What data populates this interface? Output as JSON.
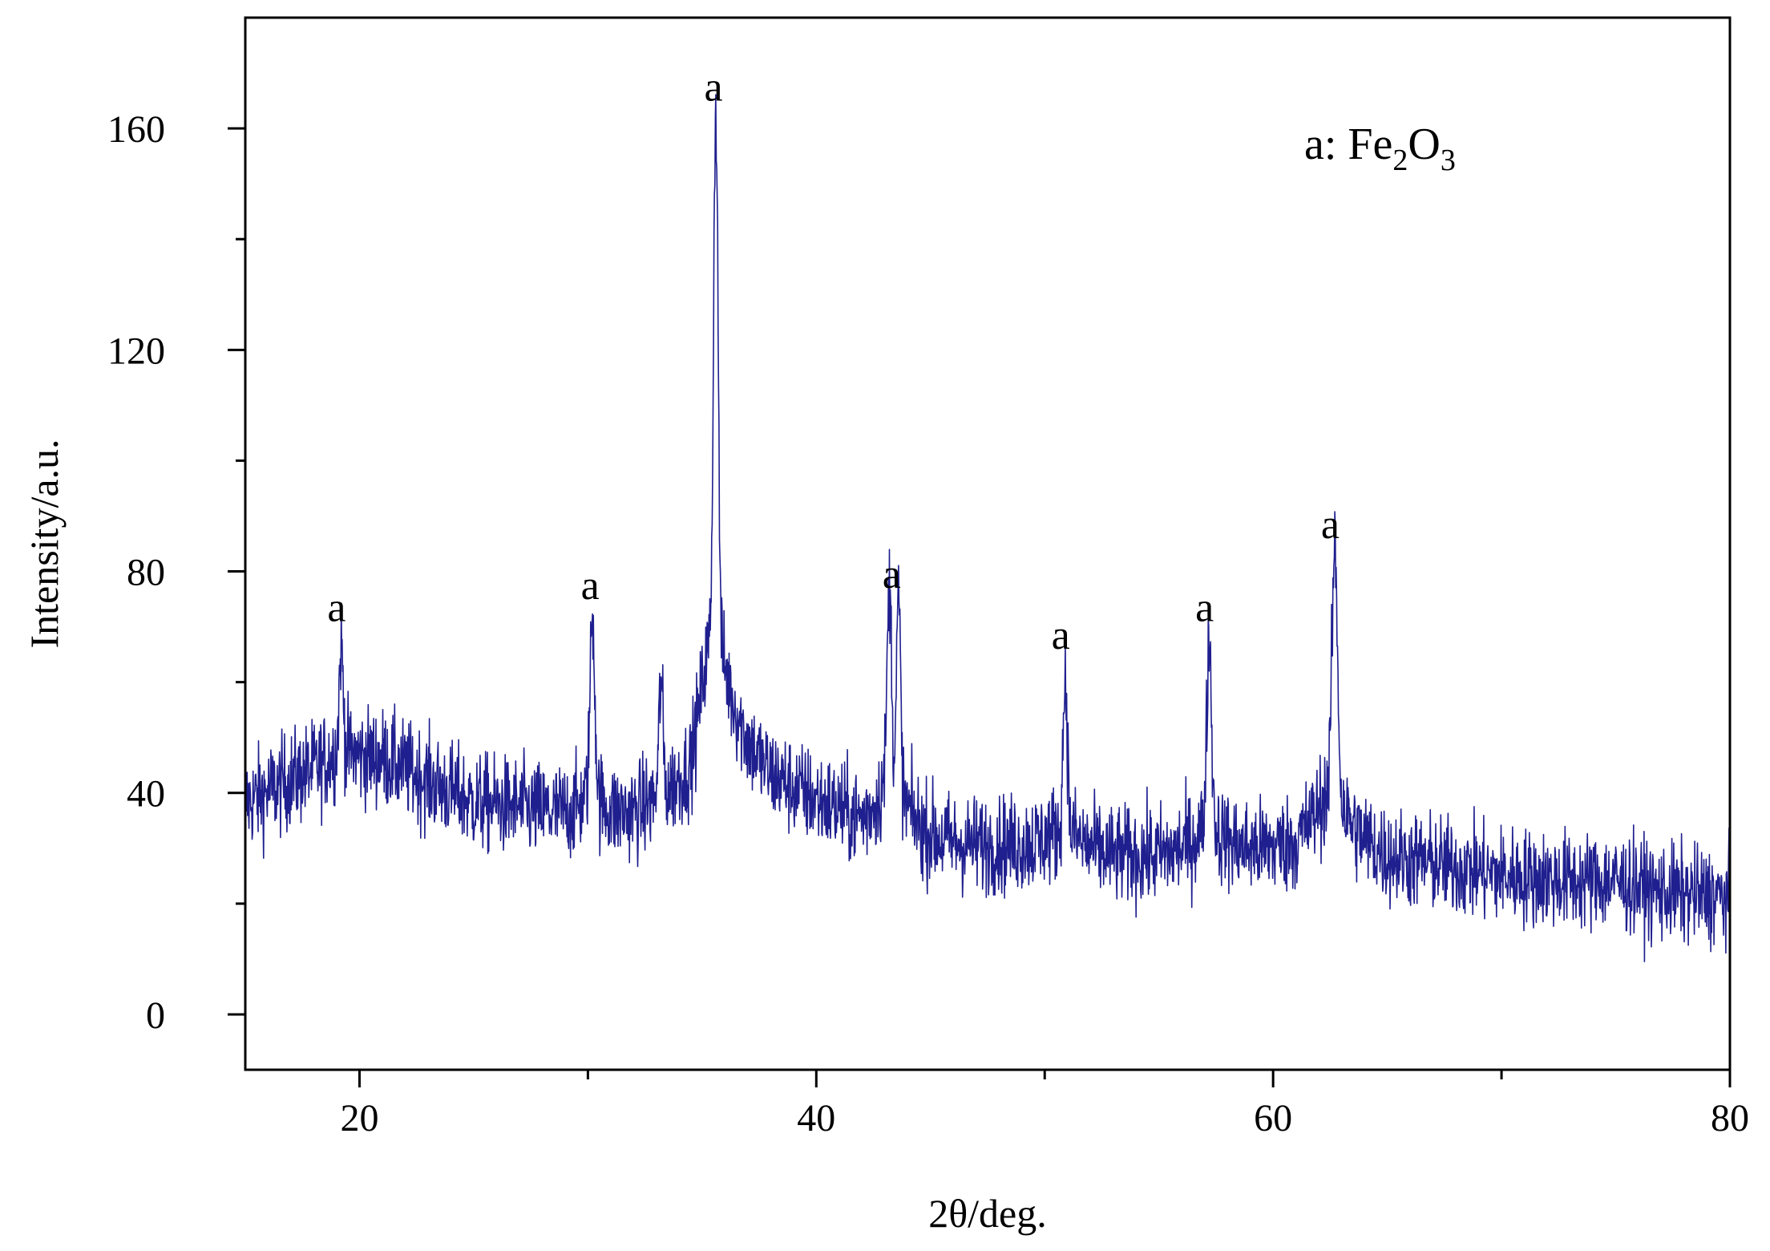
{
  "chart_data": {
    "type": "line",
    "title": "",
    "xlabel": "2θ/deg.",
    "ylabel": "Intensity/a.u.",
    "xlim": [
      15,
      80
    ],
    "ylim": [
      -10,
      180
    ],
    "x_ticks": [
      20,
      40,
      60,
      80
    ],
    "x_minor_ticks": [
      30,
      50,
      70
    ],
    "y_ticks": [
      0,
      40,
      80,
      120,
      160
    ],
    "y_minor_ticks": [
      20,
      60,
      100,
      140
    ],
    "grid": false,
    "legend": {
      "position": "top-right",
      "prefix": "a: Fe",
      "sub1": "2",
      "mid": "O",
      "sub2": "3"
    },
    "series": [
      {
        "color": "#1f1f8f",
        "baseline": [
          [
            15,
            38
          ],
          [
            17,
            42
          ],
          [
            19,
            45
          ],
          [
            21,
            46
          ],
          [
            23,
            42
          ],
          [
            25,
            38
          ],
          [
            27,
            37
          ],
          [
            29,
            35
          ],
          [
            31,
            34
          ],
          [
            33,
            35
          ],
          [
            34.5,
            40
          ],
          [
            35.2,
            55
          ],
          [
            36,
            52
          ],
          [
            37,
            46
          ],
          [
            38,
            42
          ],
          [
            39,
            40
          ],
          [
            40,
            38
          ],
          [
            41,
            36
          ],
          [
            42,
            33
          ],
          [
            43,
            34
          ],
          [
            44,
            31
          ],
          [
            46,
            30
          ],
          [
            48,
            30
          ],
          [
            50,
            30
          ],
          [
            51.5,
            29
          ],
          [
            53,
            28
          ],
          [
            55,
            28
          ],
          [
            57,
            29
          ],
          [
            59,
            29
          ],
          [
            61,
            30
          ],
          [
            62.2,
            35
          ],
          [
            63.5,
            31
          ],
          [
            65,
            28
          ],
          [
            67,
            27
          ],
          [
            70,
            25
          ],
          [
            73,
            24
          ],
          [
            75,
            24
          ],
          [
            77,
            22
          ],
          [
            80,
            21
          ]
        ],
        "noise": 8,
        "peaks": [
          {
            "x": 19.2,
            "y": 66,
            "width": 0.12
          },
          {
            "x": 30.2,
            "y": 70,
            "width": 0.15
          },
          {
            "x": 33.2,
            "y": 58,
            "width": 0.12
          },
          {
            "x": 35.6,
            "y": 160,
            "width": 0.14
          },
          {
            "x": 43.2,
            "y": 72,
            "width": 0.14
          },
          {
            "x": 43.6,
            "y": 70,
            "width": 0.12
          },
          {
            "x": 50.9,
            "y": 60,
            "width": 0.13
          },
          {
            "x": 57.2,
            "y": 66,
            "width": 0.15
          },
          {
            "x": 62.7,
            "y": 82,
            "width": 0.17
          }
        ]
      }
    ],
    "annotations": [
      {
        "text": "a",
        "x": 19.0,
        "y": 71
      },
      {
        "text": "a",
        "x": 30.1,
        "y": 75
      },
      {
        "text": "a",
        "x": 35.5,
        "y": 165
      },
      {
        "text": "a",
        "x": 43.3,
        "y": 77
      },
      {
        "text": "a",
        "x": 50.7,
        "y": 66
      },
      {
        "text": "a",
        "x": 57.0,
        "y": 71
      },
      {
        "text": "a",
        "x": 62.5,
        "y": 86
      }
    ]
  }
}
